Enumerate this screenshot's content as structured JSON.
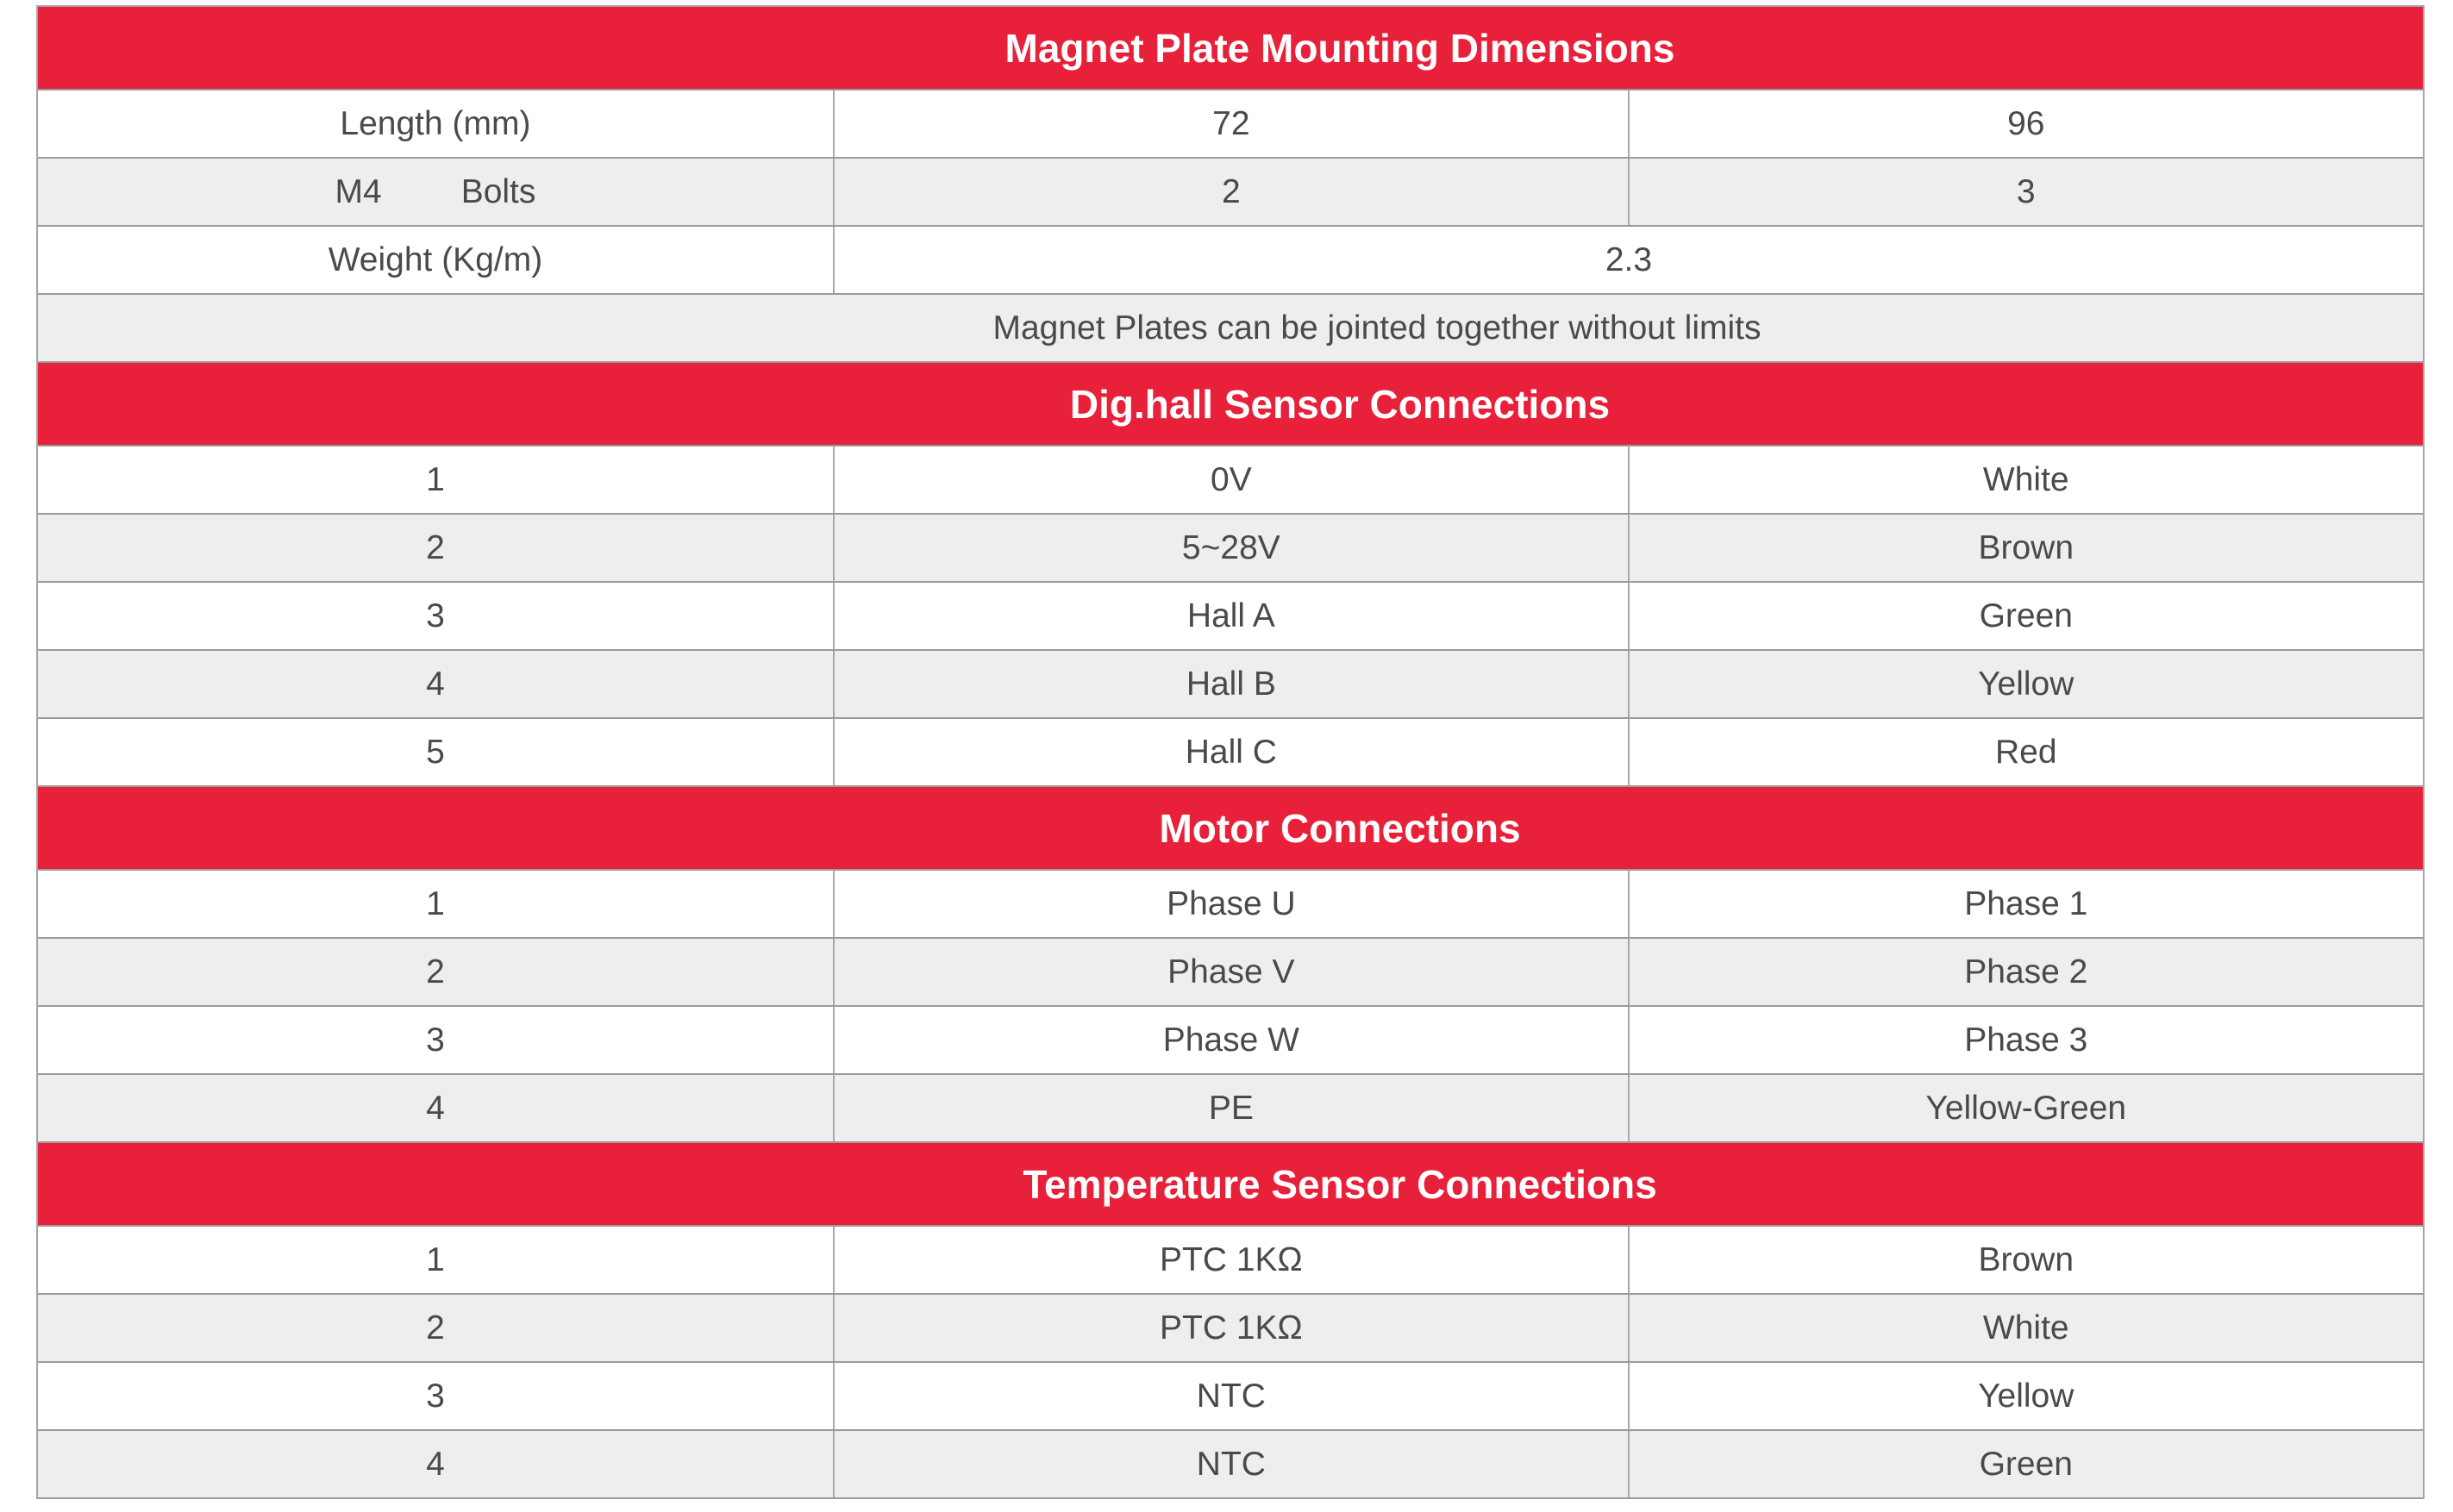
{
  "colors": {
    "page_bg": "#ffffff",
    "header_bg": "#e8203a",
    "header_text": "#ffffff",
    "row_bg": "#ffffff",
    "row_alt_bg": "#eeeeee",
    "cell_text": "#4a4a4a",
    "h_border": "#9b9b9b",
    "v_border": "#a9a9a9",
    "outer_border": "#a5a5a5"
  },
  "table": {
    "sections": [
      {
        "id": "magnet-plate-mounting-dimensions",
        "title": "Magnet Plate Mounting Dimensions",
        "rows": [
          {
            "cells": [
              {
                "text": "Length (mm)",
                "span": 1
              },
              {
                "text": "72",
                "span": 1
              },
              {
                "text": "96",
                "span": 1
              }
            ]
          },
          {
            "cells": [
              {
                "parts": [
                  "M4",
                  "Bolts"
                ],
                "span": 1
              },
              {
                "text": "2",
                "span": 1
              },
              {
                "text": "3",
                "span": 1
              }
            ]
          },
          {
            "cells": [
              {
                "text": "Weight (Kg/m)",
                "span": 1
              },
              {
                "text": "2.3",
                "span": 2
              }
            ]
          },
          {
            "cells": [
              {
                "text": "Magnet Plates can be jointed together without limits",
                "span": 3,
                "shift": true
              }
            ]
          }
        ]
      },
      {
        "id": "dig-hall-sensor-connections",
        "title": "Dig.hall Sensor Connections",
        "rows": [
          {
            "cells": [
              {
                "text": "1",
                "span": 1
              },
              {
                "text": "0V",
                "span": 1
              },
              {
                "text": "White",
                "span": 1
              }
            ]
          },
          {
            "cells": [
              {
                "text": "2",
                "span": 1
              },
              {
                "text": "5~28V",
                "span": 1
              },
              {
                "text": "Brown",
                "span": 1
              }
            ]
          },
          {
            "cells": [
              {
                "text": "3",
                "span": 1
              },
              {
                "text": "Hall A",
                "span": 1
              },
              {
                "text": "Green",
                "span": 1
              }
            ]
          },
          {
            "cells": [
              {
                "text": "4",
                "span": 1
              },
              {
                "text": "Hall B",
                "span": 1
              },
              {
                "text": "Yellow",
                "span": 1
              }
            ]
          },
          {
            "cells": [
              {
                "text": "5",
                "span": 1
              },
              {
                "text": "Hall C",
                "span": 1
              },
              {
                "text": "Red",
                "span": 1
              }
            ]
          }
        ]
      },
      {
        "id": "motor-connections",
        "title": "Motor Connections",
        "rows": [
          {
            "cells": [
              {
                "text": "1",
                "span": 1
              },
              {
                "text": "Phase U",
                "span": 1
              },
              {
                "text": "Phase 1",
                "span": 1
              }
            ]
          },
          {
            "cells": [
              {
                "text": "2",
                "span": 1
              },
              {
                "text": "Phase V",
                "span": 1
              },
              {
                "text": "Phase 2",
                "span": 1
              }
            ]
          },
          {
            "cells": [
              {
                "text": "3",
                "span": 1
              },
              {
                "text": "Phase W",
                "span": 1
              },
              {
                "text": "Phase 3",
                "span": 1
              }
            ]
          },
          {
            "cells": [
              {
                "text": "4",
                "span": 1
              },
              {
                "text": "PE",
                "span": 1
              },
              {
                "text": "Yellow-Green",
                "span": 1
              }
            ]
          }
        ]
      },
      {
        "id": "temperature-sensor-connections",
        "title": "Temperature Sensor Connections",
        "rows": [
          {
            "cells": [
              {
                "text": "1",
                "span": 1
              },
              {
                "text": "PTC 1KΩ",
                "span": 1
              },
              {
                "text": "Brown",
                "span": 1
              }
            ]
          },
          {
            "cells": [
              {
                "text": "2",
                "span": 1
              },
              {
                "text": "PTC 1KΩ",
                "span": 1
              },
              {
                "text": "White",
                "span": 1
              }
            ]
          },
          {
            "cells": [
              {
                "text": "3",
                "span": 1
              },
              {
                "text": "NTC",
                "span": 1
              },
              {
                "text": "Yellow",
                "span": 1
              }
            ]
          },
          {
            "cells": [
              {
                "text": "4",
                "span": 1
              },
              {
                "text": "NTC",
                "span": 1
              },
              {
                "text": "Green",
                "span": 1
              }
            ]
          }
        ]
      }
    ]
  }
}
